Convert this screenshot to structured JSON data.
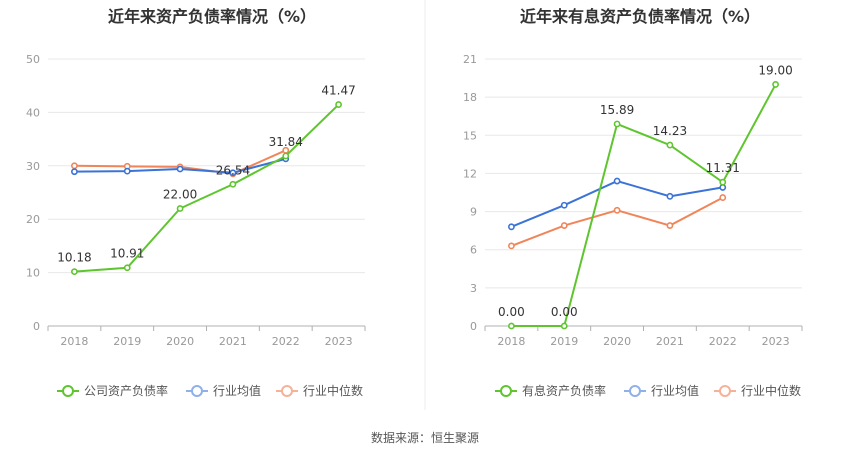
{
  "source": "数据来源：恒生聚源",
  "colors": {
    "green": "#5ec52e",
    "blue": "#3b73d6",
    "orange": "#f0855a",
    "grid": "#e8e8e8",
    "axis": "#b0b0b0"
  },
  "chart_data": [
    {
      "type": "line",
      "title": "近年来资产负债率情况（%）",
      "categories": [
        "2018",
        "2019",
        "2020",
        "2021",
        "2022",
        "2023"
      ],
      "ylim": [
        0,
        50
      ],
      "yticks": [
        "0",
        "10",
        "20",
        "30",
        "40",
        "50"
      ],
      "legend_position": "bottom",
      "grid": true,
      "series": [
        {
          "name": "公司资产负债率",
          "color": "#5ec52e",
          "values": [
            10.18,
            10.91,
            22.0,
            26.54,
            31.84,
            41.47
          ],
          "labels": [
            "10.18",
            "10.91",
            "22.00",
            "26.54",
            "31.84",
            "41.47"
          ]
        },
        {
          "name": "行业均值",
          "color": "#3b73d6",
          "values": [
            28.9,
            29.0,
            29.4,
            28.7,
            31.3,
            null
          ],
          "labels": []
        },
        {
          "name": "行业中位数",
          "color": "#f0855a",
          "values": [
            30.0,
            29.9,
            29.8,
            28.5,
            32.9,
            null
          ],
          "labels": []
        }
      ]
    },
    {
      "type": "line",
      "title": "近年来有息资产负债率情况（%）",
      "categories": [
        "2018",
        "2019",
        "2020",
        "2021",
        "2022",
        "2023"
      ],
      "ylim": [
        0,
        21
      ],
      "yticks": [
        "0",
        "3",
        "6",
        "9",
        "12",
        "15",
        "18",
        "21"
      ],
      "legend_position": "bottom",
      "grid": true,
      "series": [
        {
          "name": "有息资产负债率",
          "color": "#5ec52e",
          "values": [
            0.0,
            0.0,
            15.89,
            14.23,
            11.31,
            19.0
          ],
          "labels": [
            "0.00",
            "0.00",
            "15.89",
            "14.23",
            "11.31",
            "19.00"
          ]
        },
        {
          "name": "行业均值",
          "color": "#3b73d6",
          "values": [
            7.8,
            9.5,
            11.4,
            10.2,
            10.9,
            null
          ],
          "labels": []
        },
        {
          "name": "行业中位数",
          "color": "#f0855a",
          "values": [
            6.3,
            7.9,
            9.1,
            7.9,
            10.1,
            null
          ],
          "labels": []
        }
      ]
    }
  ]
}
